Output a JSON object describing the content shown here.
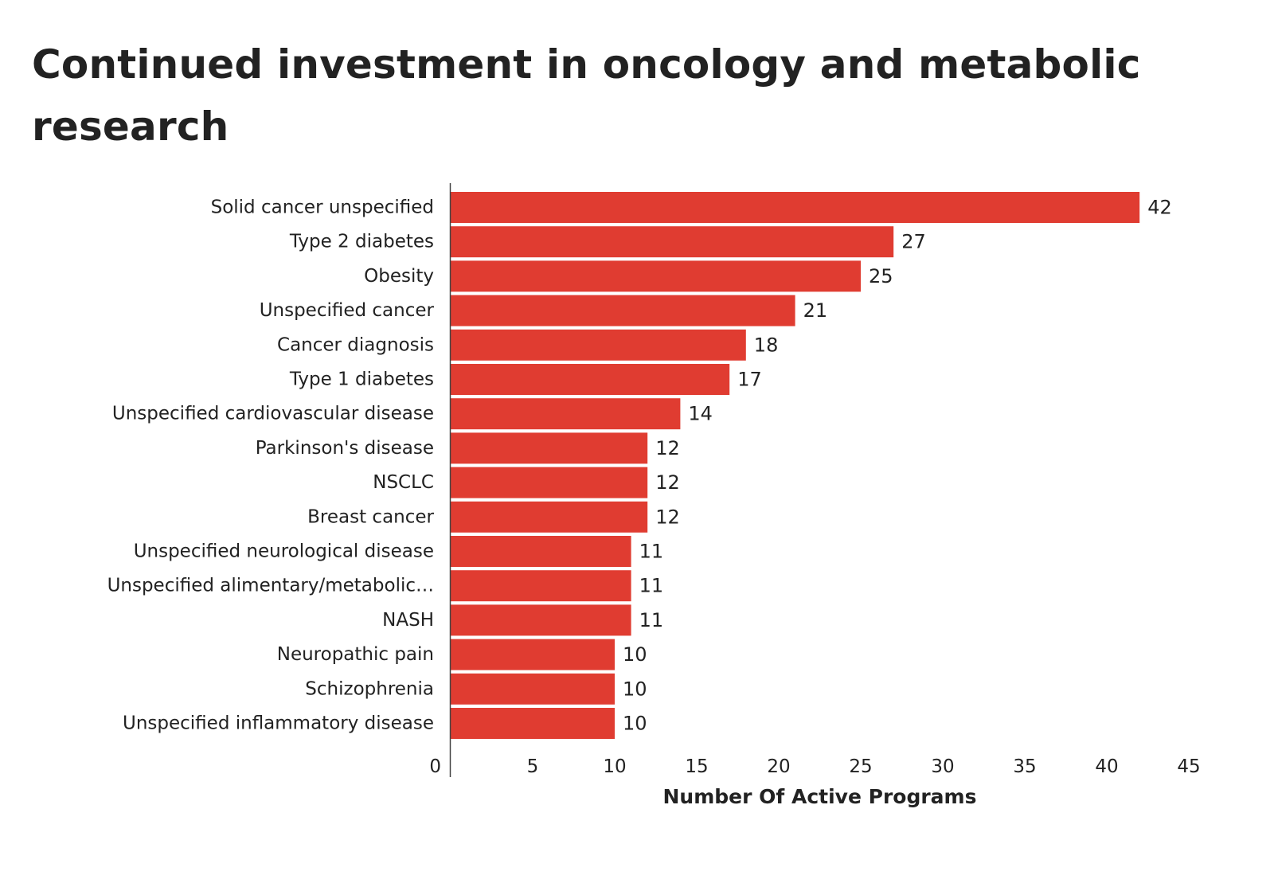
{
  "chart_data": {
    "type": "bar",
    "orientation": "horizontal",
    "title": "Continued investment in oncology and metabolic research",
    "xlabel": "Number Of Active Programs",
    "ylabel": "",
    "categories": [
      "Solid cancer unspecified",
      "Type 2 diabetes",
      "Obesity",
      "Unspecified cancer",
      "Cancer diagnosis",
      "Type 1 diabetes",
      "Unspecified cardiovascular disease",
      "Parkinson's disease",
      "NSCLC",
      "Breast cancer",
      "Unspecified neurological disease",
      "Unspecified alimentary/metabolic…",
      "NASH",
      "Neuropathic pain",
      "Schizophrenia",
      "Unspecified inflammatory disease"
    ],
    "values": [
      42,
      27,
      25,
      21,
      18,
      17,
      14,
      12,
      12,
      12,
      11,
      11,
      11,
      10,
      10,
      10
    ],
    "data_labels": [
      "42",
      "27",
      "25",
      "21",
      "18",
      "17",
      "14",
      "12",
      "12",
      "12",
      "11",
      "11",
      "11",
      "10",
      "10",
      "10"
    ],
    "xlim": [
      0,
      45
    ],
    "xticks": [
      0,
      5,
      10,
      15,
      20,
      25,
      30,
      35,
      40,
      45
    ],
    "xtick_labels": [
      "0",
      "5",
      "10",
      "15",
      "20",
      "25",
      "30",
      "35",
      "40",
      "45"
    ],
    "grid": false,
    "legend": "none",
    "bar_color": "#e03c31",
    "text_color": "#222222"
  }
}
